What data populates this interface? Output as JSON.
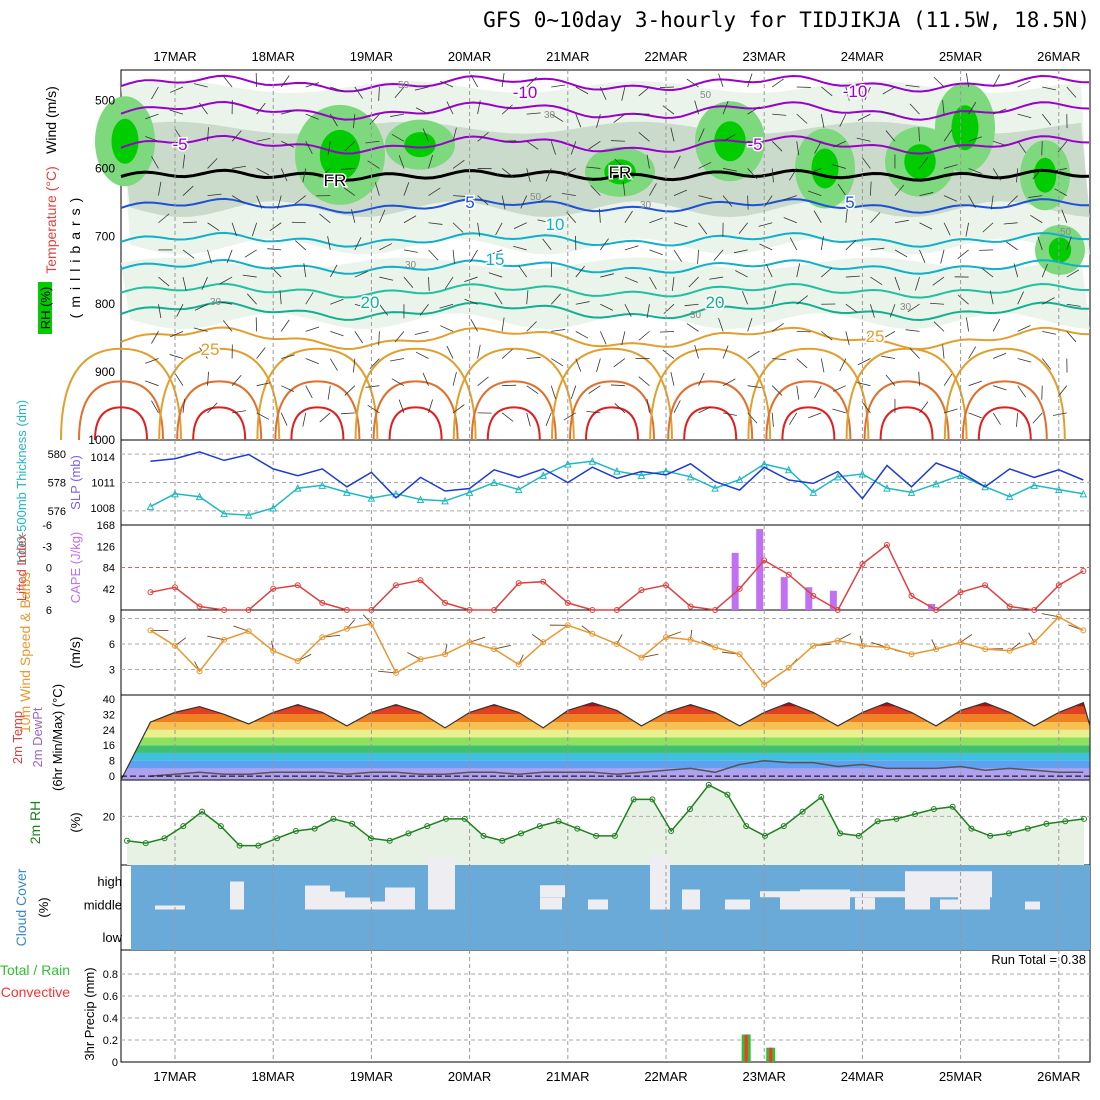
{
  "title": "GFS 0~10day 3-hourly for TIDJIKJA (11.5W, 18.5N)",
  "dates": [
    "17MAR",
    "18MAR",
    "19MAR",
    "20MAR",
    "21MAR",
    "22MAR",
    "23MAR",
    "24MAR",
    "25MAR",
    "26MAR"
  ],
  "run_total": "Run Total = 0.38",
  "colors": {
    "rh_green": "#00cc00",
    "rh_gray": "#b8c8b8",
    "temp_purple": "#9900cc",
    "temp_blue": "#1e50d8",
    "temp_cyan": "#10b0c8",
    "temp_teal": "#10b090",
    "temp_orange": "#e0a030",
    "temp_red": "#e02020",
    "slp": "#1e3cd0",
    "thickness": "#20b8c0",
    "cape": "#c070f0",
    "lifted": "#e04040",
    "wind_speed": "#e89830",
    "dewpt": "#c0a0ff",
    "rh2m": "#208020",
    "cloud_bg": "#6aaad8",
    "cloud_bar": "#eeeef2",
    "precip_total": "#30c030",
    "precip_conv": "#ff3030"
  },
  "panels": {
    "upper_air": {
      "ylabel_rh": "RH (%)",
      "ylabel_temp": "Temperature (°C)",
      "ylabel_wind": "Wind (m/s)",
      "ylabel_units": "(millibars)",
      "pressure_ticks": [
        "500",
        "600",
        "700",
        "800",
        "900",
        "1000"
      ],
      "isotherm_labels": [
        "-10",
        "-10",
        "-5",
        "-5",
        "FR",
        "FR",
        "5",
        "5",
        "10",
        "15",
        "20",
        "20",
        "25",
        "25"
      ],
      "rh_labels": [
        "50",
        "30",
        "50",
        "30",
        "50",
        "30",
        "30",
        "30",
        "30",
        "50"
      ]
    },
    "thickness_slp": {
      "ylabel_left": "1000-500mb Thickness (dm)",
      "ylabel_right": "SLP (mb)",
      "thickness_ticks": [
        "580",
        "578",
        "576"
      ],
      "slp_ticks": [
        "1014",
        "1011",
        "1008"
      ]
    },
    "cape_li": {
      "ylabel_left": "Lifted Index",
      "ylabel_right": "CAPE (J/kg)",
      "li_ticks": [
        "-6",
        "-3",
        "0",
        "3",
        "6"
      ],
      "cape_ticks": [
        "168",
        "126",
        "84",
        "42"
      ]
    },
    "wind10m": {
      "ylabel": "10m Wind Speed & Barbs",
      "units": "(m/s)",
      "ticks": [
        "9",
        "6",
        "3"
      ]
    },
    "temp2m": {
      "ylabel": "2m Temp 2m DewPt (6hr Min/Max) (°C)",
      "ticks": [
        "40",
        "32",
        "24",
        "16",
        "8",
        "0"
      ]
    },
    "rh2m": {
      "ylabel": "2m RH",
      "units": "(%)",
      "ticks": [
        "20"
      ]
    },
    "cloud": {
      "ylabel": "Cloud Cover",
      "units": "(%)",
      "levels": [
        "high",
        "middle",
        "low"
      ]
    },
    "precip": {
      "ylabel_total": "Total / Rain",
      "ylabel_conv": "Convective",
      "ylabel_units": "3hr Precip (mm)",
      "ticks": [
        "0.8",
        "0.6",
        "0.4",
        "0.2",
        "0"
      ]
    }
  },
  "chart_data": [
    {
      "type": "line",
      "name": "1000-500mb Thickness (dm)",
      "x": [
        "16MAR18Z",
        "17MAR00Z",
        "17MAR06Z",
        "17MAR12Z",
        "17MAR18Z",
        "18MAR00Z",
        "18MAR06Z",
        "18MAR12Z",
        "18MAR18Z",
        "19MAR00Z",
        "19MAR06Z",
        "19MAR12Z",
        "19MAR18Z",
        "20MAR00Z",
        "20MAR06Z",
        "20MAR12Z",
        "20MAR18Z",
        "21MAR00Z",
        "21MAR06Z",
        "21MAR12Z",
        "21MAR18Z",
        "22MAR00Z",
        "22MAR06Z",
        "22MAR12Z",
        "22MAR18Z",
        "23MAR00Z",
        "23MAR06Z",
        "23MAR12Z",
        "23MAR18Z",
        "24MAR00Z",
        "24MAR06Z",
        "24MAR12Z",
        "24MAR18Z",
        "25MAR00Z",
        "25MAR06Z",
        "25MAR12Z",
        "25MAR18Z",
        "26MAR00Z",
        "26MAR06Z"
      ],
      "values": [
        576.3,
        577.2,
        577.0,
        575.8,
        575.7,
        576.2,
        577.6,
        577.8,
        577.3,
        576.9,
        577.2,
        576.8,
        576.7,
        577.3,
        578.0,
        577.5,
        578.5,
        579.3,
        579.5,
        578.8,
        578.5,
        578.8,
        578.4,
        577.6,
        578.2,
        579.3,
        578.9,
        577.3,
        578.4,
        578.6,
        577.6,
        577.3,
        577.9,
        578.5,
        577.7,
        577.0,
        577.8,
        577.5,
        577.2
      ],
      "ylim": [
        575,
        581
      ]
    },
    {
      "type": "line",
      "name": "SLP (mb)",
      "x_ref": "same as thickness",
      "values": [
        1013.5,
        1013.8,
        1014.6,
        1013.6,
        1014.3,
        1012.6,
        1011.8,
        1012.6,
        1010.5,
        1012.2,
        1009.2,
        1011.6,
        1010.0,
        1010.3,
        1012.5,
        1011.6,
        1012.6,
        1011.0,
        1012.8,
        1011.5,
        1012.3,
        1011.9,
        1013.2,
        1011.1,
        1010.1,
        1012.8,
        1011.3,
        1010.9,
        1012.3,
        1009.1,
        1013.0,
        1010.5,
        1013.3,
        1012.2,
        1010.5,
        1012.6,
        1011.6,
        1012.5,
        1011.3
      ],
      "ylim": [
        1006,
        1016
      ]
    },
    {
      "type": "line",
      "name": "Lifted Index",
      "values": [
        3.5,
        2.8,
        5.5,
        6,
        6,
        3,
        2.5,
        5,
        6,
        6,
        2.5,
        1.8,
        5,
        6,
        6,
        2.2,
        2.0,
        5,
        6,
        6,
        3.2,
        2.5,
        5.5,
        6,
        3,
        -1,
        1,
        4,
        6,
        -0.5,
        -3.2,
        4,
        6,
        3.5,
        2.5,
        5.5,
        6,
        2.5,
        0.5
      ],
      "ylim": [
        6,
        -6
      ]
    },
    {
      "type": "bar",
      "name": "CAPE (J/kg)",
      "categories": [
        "22MAR15Z",
        "22MAR18Z",
        "22MAR21Z",
        "23MAR00Z",
        "23MAR03Z",
        "23MAR18Z"
      ],
      "values": [
        113,
        160,
        65,
        45,
        38,
        12
      ],
      "ylim": [
        0,
        168
      ]
    },
    {
      "type": "line",
      "name": "10m Wind Speed (m/s)",
      "values": [
        7.6,
        5.8,
        2.8,
        6.5,
        7.5,
        5.2,
        4.0,
        6.8,
        7.8,
        8.4,
        2.6,
        4.2,
        4.8,
        6.2,
        5.4,
        3.6,
        6.2,
        8.2,
        7.2,
        6.0,
        4.4,
        6.8,
        6.5,
        5.6,
        4.8,
        1.2,
        3.2,
        5.8,
        6.4,
        5.8,
        5.6,
        4.8,
        5.4,
        6.2,
        5.4,
        5.2,
        6.2,
        9.2,
        7.6
      ],
      "ylim": [
        0,
        10
      ]
    },
    {
      "type": "area",
      "name": "2m Temp (°C)",
      "values": [
        28,
        33,
        36,
        32,
        27,
        33,
        37,
        33,
        26,
        33,
        37,
        33,
        25,
        33,
        37,
        33,
        25,
        34,
        38,
        34,
        26,
        33,
        37,
        33,
        26,
        33,
        38,
        33,
        26,
        33,
        38,
        33,
        26,
        34,
        38,
        33,
        26,
        33,
        38
      ],
      "ylim": [
        -2,
        42
      ]
    },
    {
      "type": "line",
      "name": "2m DewPt (°C)",
      "values": [
        0,
        1,
        2,
        1,
        1,
        2,
        2,
        2,
        1,
        2,
        2,
        1,
        1,
        2,
        2,
        1,
        2,
        2,
        2,
        1,
        2,
        3,
        4,
        2,
        6,
        8,
        7,
        7,
        5,
        6,
        4,
        4,
        4,
        5,
        3,
        4,
        3,
        2,
        2
      ],
      "ylim": [
        -2,
        42
      ]
    },
    {
      "type": "area",
      "name": "2m RH (%)",
      "values": [
        10,
        9,
        11,
        16,
        22,
        16,
        8,
        8,
        11,
        14,
        15,
        19,
        17,
        11,
        10,
        13,
        16,
        19,
        19,
        12,
        10,
        13,
        16,
        18,
        15,
        12,
        12,
        27,
        27,
        14,
        23,
        33,
        29,
        16,
        12,
        16,
        22,
        28,
        13,
        12,
        18,
        19,
        21,
        23,
        24,
        15,
        12,
        13,
        15,
        17,
        18,
        19
      ],
      "ylim": [
        0,
        35
      ]
    },
    {
      "type": "bar",
      "name": "3hr Precip Total (mm)",
      "categories": [
        "22MAR18Z",
        "22MAR21Z"
      ],
      "values": [
        0.25,
        0.13
      ],
      "ylim": [
        0,
        1.0
      ]
    }
  ]
}
